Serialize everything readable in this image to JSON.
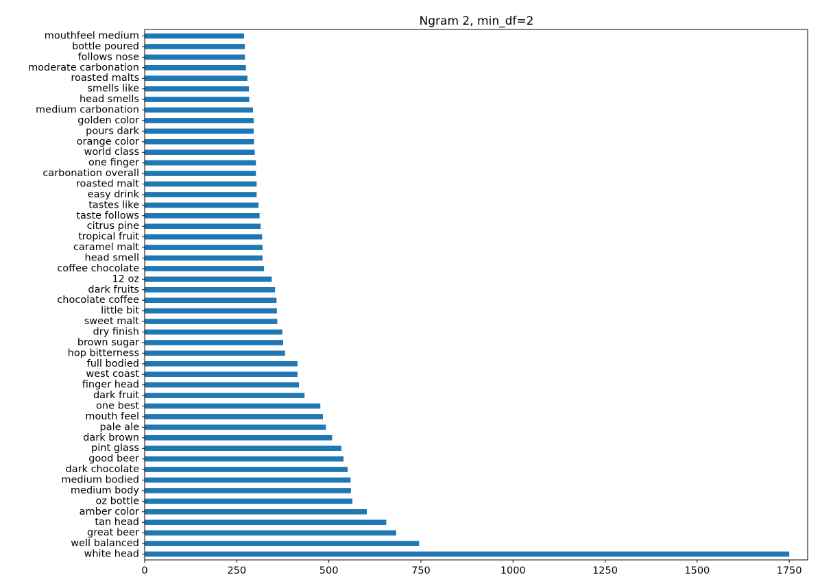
{
  "chart_data": {
    "type": "bar",
    "orientation": "horizontal",
    "title": "Ngram 2, min_df=2",
    "xlabel": "",
    "ylabel": "",
    "xlim": [
      0,
      1800
    ],
    "x_ticks": [
      0,
      250,
      500,
      750,
      1000,
      1250,
      1500,
      1750
    ],
    "grid": false,
    "bar_color": "#1f77b4",
    "categories": [
      "white head",
      "well balanced",
      "great beer",
      "tan head",
      "amber color",
      "oz bottle",
      "medium body",
      "medium bodied",
      "dark chocolate",
      "good beer",
      "pint glass",
      "dark brown",
      "pale ale",
      "mouth feel",
      "one best",
      "dark fruit",
      "finger head",
      "west coast",
      "full bodied",
      "hop bitterness",
      "brown sugar",
      "dry finish",
      "sweet malt",
      "little bit",
      "chocolate coffee",
      "dark fruits",
      "12 oz",
      "coffee chocolate",
      "head smell",
      "caramel malt",
      "tropical fruit",
      "citrus pine",
      "taste follows",
      "tastes like",
      "easy drink",
      "roasted malt",
      "carbonation overall",
      "one finger",
      "world class",
      "orange color",
      "pours dark",
      "golden color",
      "medium carbonation",
      "head smells",
      "smells like",
      "roasted malts",
      "moderate carbonation",
      "follows nose",
      "bottle poured",
      "mouthfeel medium"
    ],
    "values": [
      1750,
      745,
      683,
      656,
      603,
      564,
      560,
      559,
      551,
      540,
      534,
      509,
      492,
      484,
      477,
      434,
      419,
      415,
      415,
      381,
      376,
      374,
      360,
      359,
      358,
      354,
      345,
      324,
      320,
      320,
      319,
      315,
      312,
      309,
      304,
      304,
      302,
      302,
      299,
      297,
      296,
      296,
      294,
      284,
      283,
      279,
      275,
      272,
      272,
      270
    ]
  }
}
